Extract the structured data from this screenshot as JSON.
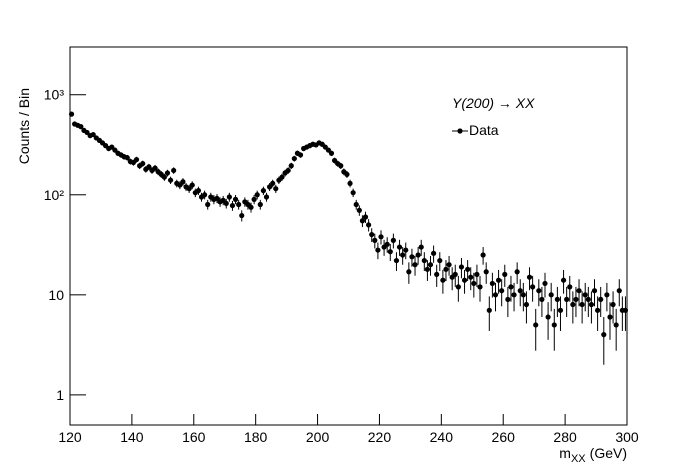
{
  "chart_data": {
    "type": "histogram-points",
    "ylabel": "Counts / Bin",
    "xlabel": [
      "m",
      "XX",
      "(GeV)"
    ],
    "annotation": "Y(200) → XX",
    "legend_position": "upper-right",
    "log_y": true,
    "error_bars": "poisson",
    "xlim": [
      120,
      300
    ],
    "ylim": [
      0.5,
      3000
    ],
    "xticks": [
      120,
      140,
      160,
      180,
      200,
      220,
      240,
      260,
      280,
      300
    ],
    "yticks": [
      1,
      10,
      {
        "value": 100,
        "label": "10²"
      },
      {
        "value": 1000,
        "label": "10³"
      }
    ],
    "bins": [
      120,
      121,
      122,
      123,
      124,
      125,
      126,
      127,
      128,
      129,
      130,
      131,
      132,
      133,
      134,
      135,
      136,
      137,
      138,
      139,
      140,
      141,
      142,
      143,
      144,
      145,
      146,
      147,
      148,
      149,
      150,
      151,
      152,
      153,
      154,
      155,
      156,
      157,
      158,
      159,
      160,
      161,
      162,
      163,
      164,
      165,
      166,
      167,
      168,
      169,
      170,
      171,
      172,
      173,
      174,
      175,
      176,
      177,
      178,
      179,
      180,
      181,
      182,
      183,
      184,
      185,
      186,
      187,
      188,
      189,
      190,
      191,
      192,
      193,
      194,
      195,
      196,
      197,
      198,
      199,
      200,
      201,
      202,
      203,
      204,
      205,
      206,
      207,
      208,
      209,
      210,
      211,
      212,
      213,
      214,
      215,
      216,
      217,
      218,
      219,
      220,
      221,
      222,
      223,
      224,
      225,
      226,
      227,
      228,
      229,
      230,
      231,
      232,
      233,
      234,
      235,
      236,
      237,
      238,
      239,
      240,
      241,
      242,
      243,
      244,
      245,
      246,
      247,
      248,
      249,
      250,
      251,
      252,
      253,
      254,
      255,
      256,
      257,
      258,
      259,
      260,
      261,
      262,
      263,
      264,
      265,
      266,
      267,
      268,
      269,
      270,
      271,
      272,
      273,
      274,
      275,
      276,
      277,
      278,
      279,
      280,
      281,
      282,
      283,
      284,
      285,
      286,
      287,
      288,
      289,
      290,
      291,
      292,
      293,
      294,
      295,
      296,
      297,
      298,
      299,
      300
    ],
    "series": [
      {
        "name": "Data",
        "color": "#000000",
        "values": [
          640,
          510,
          495,
          480,
          440,
          420,
          390,
          400,
          370,
          350,
          330,
          310,
          290,
          300,
          280,
          260,
          250,
          240,
          235,
          215,
          210,
          225,
          195,
          205,
          180,
          190,
          175,
          185,
          170,
          160,
          150,
          165,
          140,
          175,
          130,
          125,
          135,
          120,
          115,
          125,
          105,
          110,
          95,
          100,
          80,
          95,
          90,
          92,
          85,
          88,
          82,
          95,
          78,
          90,
          80,
          62,
          85,
          80,
          75,
          90,
          100,
          80,
          110,
          95,
          120,
          130,
          115,
          140,
          150,
          165,
          175,
          195,
          230,
          260,
          250,
          290,
          300,
          310,
          320,
          315,
          330,
          320,
          300,
          280,
          260,
          220,
          205,
          195,
          170,
          160,
          130,
          105,
          80,
          70,
          55,
          60,
          50,
          40,
          35,
          28,
          38,
          30,
          32,
          27,
          35,
          22,
          30,
          25,
          28,
          17,
          24,
          20,
          25,
          30,
          22,
          18,
          20,
          26,
          16,
          22,
          14,
          18,
          20,
          15,
          16,
          12,
          19,
          14,
          18,
          15,
          13,
          16,
          12,
          25,
          17,
          7,
          13,
          10,
          14,
          11,
          16,
          9,
          12,
          10,
          17,
          11,
          10,
          8,
          15,
          12,
          5,
          11,
          9,
          13,
          6,
          10,
          5,
          9,
          7,
          14,
          9,
          12,
          8,
          9,
          11,
          8,
          10,
          9,
          8,
          11,
          7,
          9,
          4,
          10,
          6,
          8,
          5,
          11,
          7,
          7
        ]
      }
    ]
  }
}
